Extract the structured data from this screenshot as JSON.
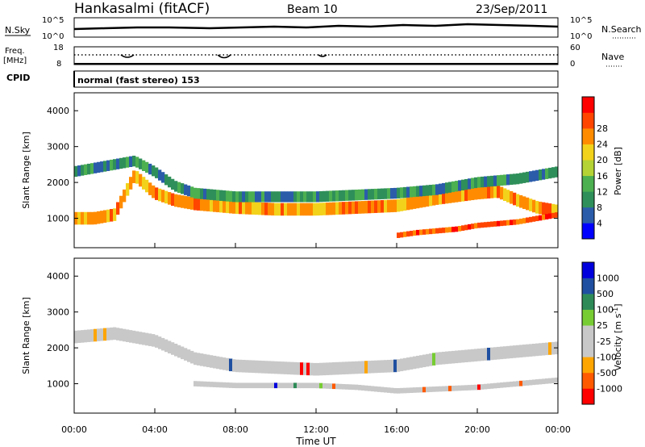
{
  "header": {
    "station": "Hankasalmi (fitACF)",
    "beam": "Beam 10",
    "date": "23/Sep/2011"
  },
  "noise_panel": {
    "left_label": "N.Sky",
    "left_ticks": [
      "10^5",
      "10^0"
    ],
    "right_label": "N.Search",
    "right_ticks": [
      "10^5",
      "10^0"
    ]
  },
  "freq_panel": {
    "left_label_1": "Freq.",
    "left_label_2": "[MHz]",
    "left_ticks": [
      "18",
      "8"
    ],
    "right_label": "Nave",
    "right_ticks": [
      "60",
      "0"
    ]
  },
  "cpid": {
    "label": "CPID",
    "value": "normal (fast stereo) 153"
  },
  "colors": {
    "power_scale": [
      "#0000ff",
      "#2a5caa",
      "#2f8f5a",
      "#4caf50",
      "#b5d334",
      "#f2d21b",
      "#ff8c00",
      "#ff4500",
      "#ff0000"
    ],
    "velocity_scale": [
      "#ff0000",
      "#ff5a00",
      "#ffa500",
      "#c8c8c8",
      "#c8c8c8",
      "#77cc33",
      "#2e8b57",
      "#1f4fa0",
      "#0000dd"
    ],
    "ground_scatter": "#c8c8c8"
  },
  "chart_data": [
    {
      "type": "heatmap",
      "panel": "power",
      "ylabel": "Slant Range [km]",
      "yticks": [
        "1000",
        "2000",
        "3000",
        "4000"
      ],
      "ylim": [
        180,
        4500
      ],
      "xlim": [
        0,
        24
      ],
      "colorbar": {
        "label": "Power [dB]",
        "ticks": [
          "4",
          "8",
          "12",
          "16",
          "20",
          "24",
          "28"
        ],
        "range": [
          0,
          32
        ]
      },
      "scatter_bands": [
        {
          "name": "main",
          "x": [
            0,
            1,
            2,
            3,
            4,
            5,
            6,
            8,
            10,
            12,
            14,
            16,
            18,
            20,
            21,
            22,
            23,
            24
          ],
          "y": [
            1000,
            1000,
            1100,
            2200,
            1700,
            1500,
            1400,
            1300,
            1250,
            1250,
            1300,
            1350,
            1550,
            1700,
            1750,
            1500,
            1300,
            1200
          ],
          "width": 350,
          "level": 24
        },
        {
          "name": "upper",
          "x": [
            0,
            1,
            2,
            3,
            4,
            5,
            6,
            8,
            10,
            12,
            14,
            16,
            18,
            20,
            22,
            24
          ],
          "y": [
            2300,
            2400,
            2500,
            2600,
            2300,
            1900,
            1700,
            1600,
            1600,
            1600,
            1650,
            1700,
            1800,
            2000,
            2100,
            2300
          ],
          "width": 300,
          "level": 8
        },
        {
          "name": "lower",
          "x": [
            16,
            17,
            18,
            19,
            20,
            21,
            22,
            23,
            24
          ],
          "y": [
            520,
            600,
            650,
            700,
            800,
            850,
            900,
            1000,
            1100
          ],
          "width": 150,
          "level": 28
        }
      ]
    },
    {
      "type": "heatmap",
      "panel": "velocity",
      "ylabel": "Slant Range [km]",
      "yticks": [
        "1000",
        "2000",
        "3000",
        "4000"
      ],
      "ylim": [
        180,
        4500
      ],
      "xlim": [
        0,
        24
      ],
      "xlabel": "Time UT",
      "xticks": [
        "00:00",
        "04:00",
        "08:00",
        "12:00",
        "16:00",
        "20:00",
        "00:00"
      ],
      "colorbar": {
        "label": "Velocity [m s",
        "label_sup": "-1",
        "label_end": "]",
        "ticks": [
          "1000",
          "500",
          "100",
          "25",
          "-25",
          "-100",
          "-500",
          "-1000"
        ]
      },
      "scatter_bands": [
        {
          "name": "ground",
          "x": [
            0,
            2,
            4,
            6,
            8,
            10,
            12,
            14,
            16,
            18,
            20,
            22,
            24
          ],
          "y": [
            2300,
            2400,
            2200,
            1700,
            1500,
            1450,
            1400,
            1450,
            1500,
            1700,
            1800,
            1900,
            2000
          ],
          "width": 350
        },
        {
          "name": "lower",
          "x": [
            6,
            8,
            10,
            12,
            14,
            16,
            18,
            20,
            22,
            24
          ],
          "y": [
            1000,
            950,
            950,
            950,
            900,
            800,
            850,
            900,
            1000,
            1100
          ],
          "width": 150
        }
      ]
    }
  ]
}
